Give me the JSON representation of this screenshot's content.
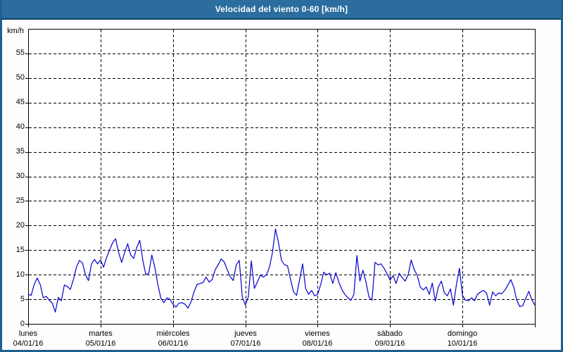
{
  "window": {
    "title": "Velocidad del viento 0-60 [km/h]"
  },
  "colors": {
    "titlebar_bg": "#2b6d9e",
    "titlebar_border": "#0e4166",
    "window_border": "#1d5f8e",
    "line_color": "#0000cc",
    "grid_color": "#000000",
    "plot_bg": "#ffffff"
  },
  "chart_data": {
    "type": "line",
    "title": "Velocidad del viento 0-60 [km/h]",
    "unit_label": "km/h",
    "ylim": [
      0,
      60
    ],
    "yticks": [
      0,
      5,
      10,
      15,
      20,
      25,
      30,
      35,
      40,
      45,
      50,
      55
    ],
    "grid": "dashed",
    "legend": "none",
    "line_color": "#0000cc",
    "points_per_day": 24,
    "days": [
      {
        "name": "lunes",
        "date": "04/01/16"
      },
      {
        "name": "martes",
        "date": "05/01/16"
      },
      {
        "name": "miércoles",
        "date": "06/01/16"
      },
      {
        "name": "jueves",
        "date": "07/01/16"
      },
      {
        "name": "viernes",
        "date": "08/01/16"
      },
      {
        "name": "domingo",
        "date": "10/01/16"
      }
    ],
    "days_full": [
      {
        "name": "lunes",
        "date": "04/01/16"
      },
      {
        "name": "martes",
        "date": "05/01/16"
      },
      {
        "name": "miércoles",
        "date": "06/01/16"
      },
      {
        "name": "jueves",
        "date": "07/01/16"
      },
      {
        "name": "viernes",
        "date": "08/01/16"
      },
      {
        "name": "sábado",
        "date": "09/01/16"
      },
      {
        "name": "domingo",
        "date": "10/01/16"
      }
    ],
    "series": [
      {
        "name": "Velocidad del viento (km/h)",
        "values": [
          6.0,
          5.8,
          8.0,
          9.3,
          8.0,
          5.3,
          5.6,
          4.8,
          4.2,
          2.4,
          5.4,
          4.7,
          7.9,
          7.6,
          7.0,
          9.0,
          11.5,
          12.9,
          12.4,
          10.0,
          8.8,
          12.2,
          13.1,
          12.2,
          13.0,
          11.5,
          13.5,
          15.0,
          16.5,
          17.3,
          14.5,
          12.5,
          14.5,
          16.3,
          14.0,
          13.3,
          15.5,
          17.0,
          13.0,
          10.0,
          10.3,
          14.0,
          11.5,
          8.0,
          5.2,
          4.3,
          5.3,
          5.0,
          4.0,
          3.4,
          4.2,
          4.3,
          4.0,
          3.2,
          4.5,
          6.5,
          8.0,
          8.2,
          8.4,
          9.5,
          8.5,
          9.0,
          11.0,
          12.0,
          13.2,
          12.6,
          11.0,
          9.6,
          8.8,
          12.0,
          12.9,
          5.5,
          3.8,
          5.5,
          12.8,
          7.2,
          8.5,
          9.9,
          9.5,
          10.0,
          11.5,
          14.5,
          19.3,
          16.5,
          12.9,
          12.0,
          11.8,
          9.0,
          6.5,
          5.8,
          9.0,
          12.2,
          7.2,
          6.0,
          6.8,
          5.7,
          6.0,
          8.0,
          10.5,
          10.0,
          10.3,
          8.2,
          10.4,
          8.5,
          7.0,
          6.0,
          5.3,
          4.8,
          6.0,
          13.9,
          8.7,
          10.9,
          8.5,
          5.5,
          4.8,
          12.5,
          12.0,
          12.2,
          11.3,
          10.2,
          8.9,
          9.8,
          8.2,
          10.3,
          9.4,
          8.7,
          10.0,
          13.0,
          11.0,
          9.9,
          7.5,
          6.9,
          7.5,
          6.0,
          8.3,
          4.6,
          7.5,
          8.7,
          6.3,
          5.7,
          7.1,
          3.8,
          8.0,
          11.3,
          5.8,
          4.8,
          4.7,
          5.3,
          4.7,
          6.0,
          6.5,
          6.8,
          6.2,
          3.8,
          6.5,
          5.7,
          6.3,
          6.1,
          6.8,
          7.8,
          9.0,
          7.5,
          4.8,
          3.5,
          3.7,
          5.2,
          6.6,
          4.9,
          3.8
        ]
      }
    ]
  }
}
